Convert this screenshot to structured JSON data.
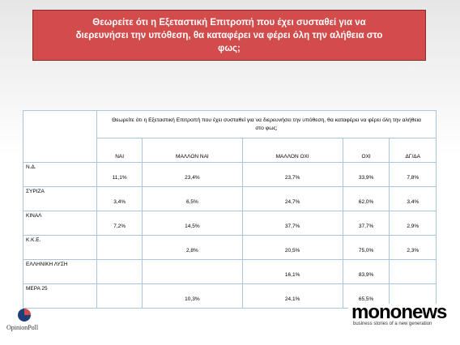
{
  "header": {
    "title": "Θεωρείτε ότι η Εξεταστική Επιτροπή που έχει συσταθεί για να διερευνήσει την υπόθεση, θα καταφέρει να φέρει όλη την αλήθεια στο φως;"
  },
  "table": {
    "question": "Θεωρείτε ότι η Εξεταστική Επιτροπή που έχει συσταθεί για να διερευνήσει την υπόθεση, θα καταφέρει να φέρει όλη την αλήθεια στο φως;",
    "columns": [
      "ΝΑΙ",
      "ΜΑΛΛΟΝ ΝΑΙ",
      "ΜΑΛΛΟΝ ΟΧΙ",
      "ΟΧΙ",
      "ΔΓ/ΔΑ"
    ],
    "rows": [
      {
        "label": "Ν.Δ.",
        "values": [
          "11,1%",
          "23,4%",
          "23,7%",
          "33,9%",
          "7,8%"
        ]
      },
      {
        "label": "ΣΥΡΙΖΑ",
        "values": [
          "3,4%",
          "6,5%",
          "24,7%",
          "62,0%",
          "3,4%"
        ]
      },
      {
        "label": "ΚΙΝΑΛ",
        "values": [
          "7,2%",
          "14,5%",
          "37,7%",
          "37,7%",
          "2,9%"
        ]
      },
      {
        "label": "Κ.Κ.Ε.",
        "values": [
          null,
          "2,8%",
          "20,5%",
          "75,0%",
          "2,3%"
        ]
      },
      {
        "label": "ΕΛΛΗΝΙΚΗ ΛΥΣΗ",
        "values": [
          null,
          null,
          "16,1%",
          "83,9%",
          null
        ]
      },
      {
        "label": "ΜΕΡΑ 25",
        "values": [
          null,
          "10,3%",
          "24,1%",
          "65,5%",
          null
        ]
      }
    ]
  },
  "logos": {
    "mononews": "mononews",
    "tagline": "business stories of a new generation",
    "opinionpoll": "OpinionPoll"
  }
}
